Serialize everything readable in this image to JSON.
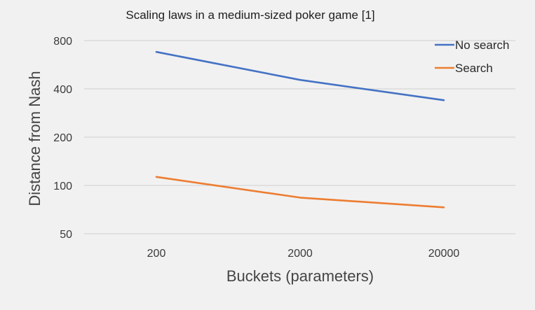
{
  "chart_data": {
    "type": "line",
    "title": "Scaling laws in a medium-sized poker game [1]",
    "xlabel": "Buckets (parameters)",
    "ylabel": "Distance from Nash",
    "x_scale": "log",
    "y_scale": "log",
    "categories": [
      "200",
      "2000",
      "20000"
    ],
    "x": [
      200,
      2000,
      20000
    ],
    "yticks": [
      50,
      100,
      200,
      400,
      800
    ],
    "ylim": [
      50,
      800
    ],
    "grid": true,
    "legend_position": "top-right",
    "series": [
      {
        "name": "No search",
        "color": "#4472c4",
        "values": [
          680,
          455,
          340
        ]
      },
      {
        "name": "Search",
        "color": "#ed7d31",
        "values": [
          113,
          84,
          73
        ]
      }
    ]
  }
}
